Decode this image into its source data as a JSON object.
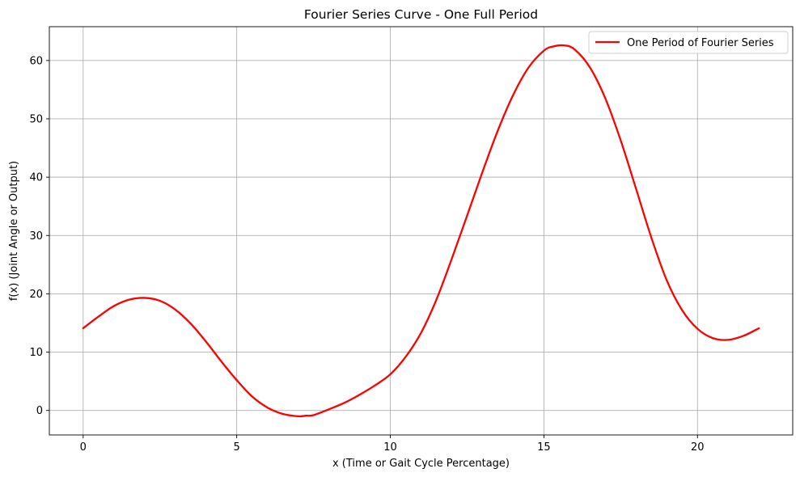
{
  "chart_data": {
    "type": "line",
    "title": "Fourier Series Curve - One Full Period",
    "xlabel": "x (Time or Gait Cycle Percentage)",
    "ylabel": "f(x) (Joint Angle or Output)",
    "xlim": [
      -1.1,
      23.1
    ],
    "ylim": [
      -4.2,
      65.8
    ],
    "xticks": [
      0,
      5,
      10,
      15,
      20
    ],
    "yticks": [
      0,
      10,
      20,
      30,
      40,
      50,
      60
    ],
    "grid": true,
    "legend_position": "top-right",
    "series": [
      {
        "name": "One Period of Fourier Series",
        "color": "#ff0000",
        "x": [
          0,
          0.5,
          1,
          1.5,
          2,
          2.5,
          3,
          3.5,
          4,
          4.5,
          5,
          5.5,
          6,
          6.5,
          7,
          7.25,
          7.5,
          8,
          8.5,
          9,
          9.5,
          10,
          10.5,
          11,
          11.5,
          12,
          12.5,
          13,
          13.5,
          14,
          14.5,
          15,
          15.3,
          15.65,
          16,
          16.5,
          17,
          17.5,
          18,
          18.5,
          19,
          19.5,
          20,
          20.5,
          21,
          21.5,
          22
        ],
        "y": [
          14.1,
          16.1,
          17.9,
          19.0,
          19.3,
          18.8,
          17.3,
          14.9,
          11.8,
          8.4,
          5.2,
          2.4,
          0.5,
          -0.6,
          -1.0,
          -0.9,
          -0.8,
          0.2,
          1.3,
          2.7,
          4.3,
          6.2,
          9.2,
          13.3,
          19.0,
          26.0,
          33.4,
          40.9,
          48.0,
          54.1,
          58.8,
          61.7,
          62.4,
          62.6,
          61.9,
          58.8,
          53.5,
          46.3,
          38.0,
          29.6,
          22.3,
          17.2,
          14.0,
          12.4,
          12.1,
          12.8,
          14.1
        ]
      }
    ]
  }
}
